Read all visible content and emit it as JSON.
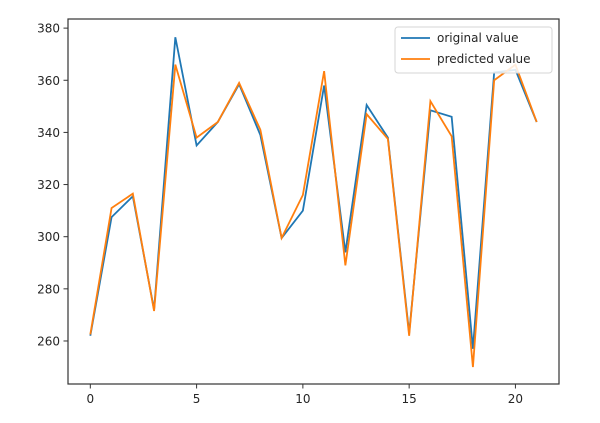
{
  "chart_data": {
    "type": "line",
    "title": "",
    "xlabel": "",
    "ylabel": "",
    "x": [
      0,
      1,
      2,
      3,
      4,
      5,
      6,
      7,
      8,
      9,
      10,
      11,
      12,
      13,
      14,
      15,
      16,
      17,
      18,
      19,
      20,
      21
    ],
    "series": [
      {
        "name": "original value",
        "color": "#1f77b4",
        "values": [
          262,
          307.5,
          315.5,
          272,
          376.5,
          335,
          344,
          358.5,
          339,
          299.5,
          310,
          358,
          294,
          350.5,
          338,
          263,
          348.5,
          346,
          257,
          363,
          364,
          344
        ]
      },
      {
        "name": "predicted value",
        "color": "#ff7f0e",
        "values": [
          262.5,
          311,
          316.5,
          271.5,
          366,
          338,
          344,
          359,
          341,
          299.5,
          316,
          363.5,
          289,
          347,
          337.5,
          262,
          352,
          338.5,
          250,
          360,
          366,
          344
        ]
      }
    ],
    "xlim": [
      -1.05,
      22.05
    ],
    "ylim": [
      243.5,
      383.5
    ],
    "xticks": [
      0,
      5,
      10,
      15,
      20
    ],
    "xtick_labels": [
      "0",
      "5",
      "10",
      "15",
      "20"
    ],
    "yticks": [
      260,
      280,
      300,
      320,
      340,
      360,
      380
    ],
    "ytick_labels": [
      "260",
      "280",
      "300",
      "320",
      "340",
      "360",
      "380"
    ],
    "grid": false,
    "legend_position": "upper right"
  },
  "legend": {
    "items": [
      {
        "label": "original value",
        "color": "#1f77b4"
      },
      {
        "label": "predicted value",
        "color": "#ff7f0e"
      }
    ]
  }
}
